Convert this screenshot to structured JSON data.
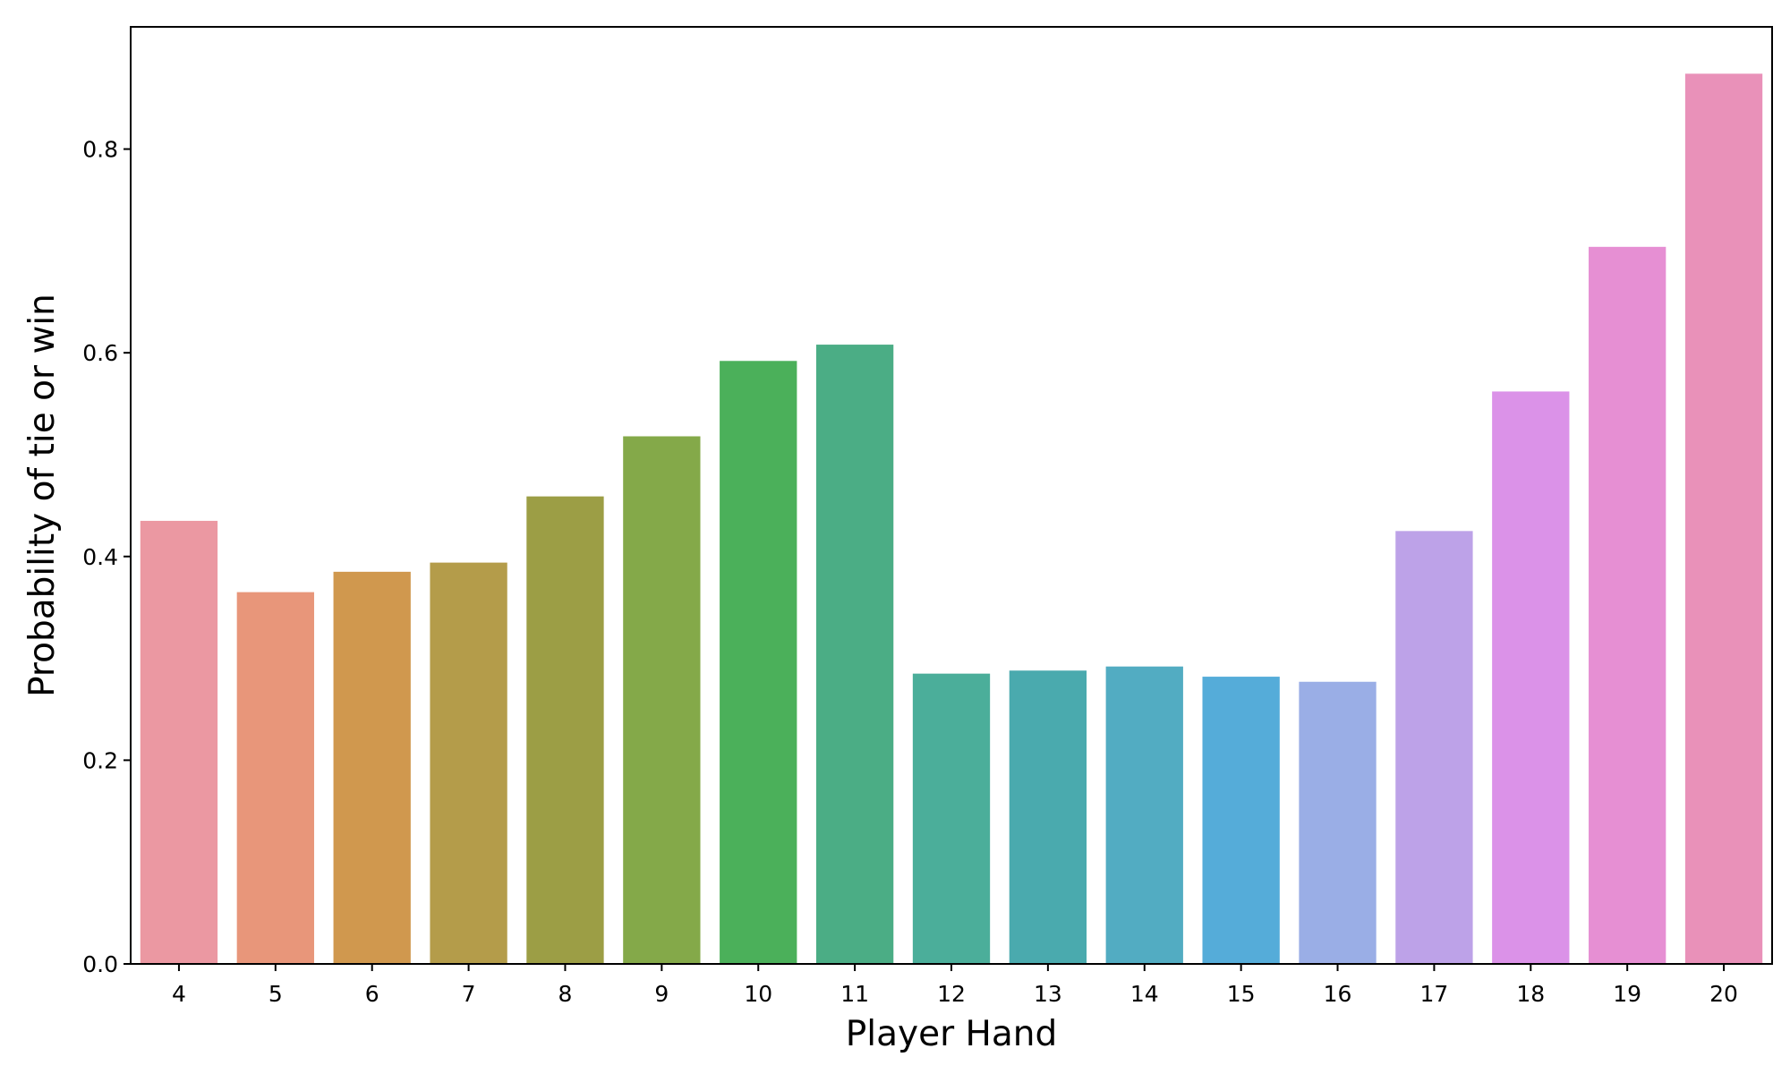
{
  "chart_data": {
    "type": "bar",
    "xlabel": "Player Hand",
    "ylabel": "Probability of tie or win",
    "categories": [
      "4",
      "5",
      "6",
      "7",
      "8",
      "9",
      "10",
      "11",
      "12",
      "13",
      "14",
      "15",
      "16",
      "17",
      "18",
      "19",
      "20"
    ],
    "values": [
      0.435,
      0.365,
      0.385,
      0.394,
      0.459,
      0.518,
      0.592,
      0.608,
      0.285,
      0.288,
      0.292,
      0.282,
      0.277,
      0.425,
      0.562,
      0.704,
      0.874
    ],
    "colors": [
      "#eb98a2",
      "#e8967a",
      "#d0984e",
      "#b49c4a",
      "#9c9e45",
      "#84a949",
      "#4bb05a",
      "#4bad85",
      "#4bae9a",
      "#4aaaae",
      "#52acc2",
      "#55acd9",
      "#9aaee6",
      "#bda2e8",
      "#db92e8",
      "#e68fd3",
      "#e991b9"
    ],
    "yticks": [
      0.0,
      0.2,
      0.4,
      0.6,
      0.8
    ],
    "ylim": [
      0,
      0.92
    ],
    "grid": false,
    "legend": "none"
  }
}
